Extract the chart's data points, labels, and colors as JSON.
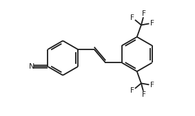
{
  "background": "#ffffff",
  "line_color": "#1a1a1a",
  "line_width": 1.3,
  "font_size": 7.5,
  "figsize": [
    2.83,
    1.69
  ],
  "dpi": 100,
  "xlim": [
    0,
    10
  ],
  "ylim": [
    0,
    6
  ]
}
